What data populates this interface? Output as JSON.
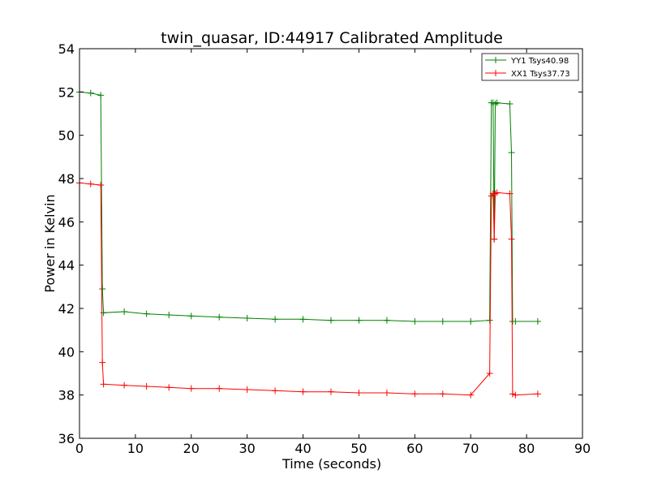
{
  "chart_data": {
    "type": "line",
    "title": "twin_quasar, ID:44917 Calibrated Amplitude",
    "xlabel": "Time (seconds)",
    "ylabel": "Power in Kelvin",
    "xlim": [
      0,
      90
    ],
    "ylim": [
      36,
      54
    ],
    "xticks": [
      0,
      10,
      20,
      30,
      40,
      50,
      60,
      70,
      80,
      90
    ],
    "yticks": [
      36,
      38,
      40,
      42,
      44,
      46,
      48,
      50,
      52,
      54
    ],
    "grid": false,
    "legend_position": "top-right",
    "series": [
      {
        "name": "YY1 Tsys40.98",
        "color": "#008000",
        "marker": "+",
        "x": [
          0,
          2,
          3.8,
          4.1,
          4.3,
          8,
          12,
          16,
          20,
          25,
          30,
          35,
          40,
          45,
          50,
          55,
          60,
          65,
          70,
          73.4,
          73.7,
          74.0,
          74.2,
          74.4,
          74.7,
          77.0,
          77.3,
          77.5,
          78,
          82
        ],
        "y": [
          52.0,
          51.95,
          51.85,
          42.9,
          41.8,
          41.85,
          41.75,
          41.7,
          41.65,
          41.6,
          41.55,
          41.5,
          41.5,
          41.45,
          41.45,
          41.45,
          41.4,
          41.4,
          41.4,
          41.45,
          51.5,
          51.5,
          45.2,
          51.45,
          51.5,
          51.45,
          49.2,
          41.4,
          41.4,
          41.4
        ]
      },
      {
        "name": "XX1 Tsys37.73",
        "color": "#ff0000",
        "marker": "+",
        "x": [
          0,
          2,
          3.8,
          4.1,
          4.3,
          8,
          12,
          16,
          20,
          25,
          30,
          35,
          40,
          45,
          50,
          55,
          60,
          65,
          70,
          73.4,
          73.7,
          74.0,
          74.2,
          74.4,
          74.7,
          77.0,
          77.3,
          77.5,
          78,
          82
        ],
        "y": [
          47.8,
          47.75,
          47.7,
          39.5,
          38.5,
          38.45,
          38.4,
          38.35,
          38.3,
          38.3,
          38.25,
          38.2,
          38.15,
          38.15,
          38.1,
          38.1,
          38.05,
          38.05,
          38.0,
          39.0,
          47.2,
          47.3,
          45.2,
          47.3,
          47.35,
          47.3,
          45.2,
          38.05,
          38.0,
          38.05
        ]
      }
    ]
  }
}
